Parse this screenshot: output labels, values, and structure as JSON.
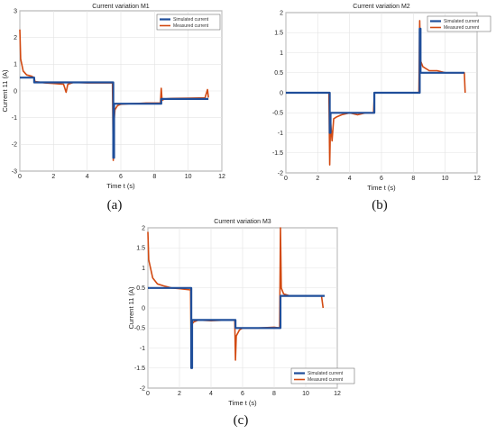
{
  "colors": {
    "simulated": "#1f4e9a",
    "measured": "#d24a12"
  },
  "chart_data": [
    {
      "type": "line",
      "title": "Current variation M1",
      "caption": "(a)",
      "xlabel": "Time t (s)",
      "ylabel": "Current 11 (A)",
      "xlim": [
        0,
        12
      ],
      "ylim": [
        -3,
        3
      ],
      "xticks": [
        0,
        2,
        4,
        6,
        8,
        10,
        12
      ],
      "yticks": [
        -3,
        -2,
        -1,
        0,
        1,
        2,
        3
      ],
      "grid": true,
      "legend": {
        "position": "top-right",
        "entries": [
          "Simulated current",
          "Measured current"
        ]
      },
      "series": [
        {
          "name": "Simulated current",
          "x": [
            0,
            0.85,
            0.85,
            5.55,
            5.55,
            5.6,
            5.6,
            8.4,
            8.4,
            11.2
          ],
          "y": [
            0.5,
            0.5,
            0.32,
            0.32,
            -2.5,
            -2.5,
            -0.48,
            -0.48,
            -0.3,
            -0.3
          ]
        },
        {
          "name": "Measured current",
          "x": [
            0,
            0.05,
            0.2,
            0.4,
            0.7,
            0.85,
            0.9,
            1.5,
            2.0,
            2.6,
            2.75,
            2.85,
            3.2,
            4.0,
            5.0,
            5.5,
            5.55,
            5.6,
            5.65,
            5.8,
            6.0,
            6.5,
            7.0,
            7.5,
            8.0,
            8.35,
            8.4,
            8.45,
            8.6,
            9.0,
            10.0,
            11.0,
            11.15,
            11.2
          ],
          "y": [
            2.3,
            1.2,
            0.75,
            0.6,
            0.55,
            0.5,
            0.35,
            0.3,
            0.28,
            0.25,
            -0.05,
            0.25,
            0.32,
            0.3,
            0.3,
            0.3,
            -2.6,
            -1.1,
            -0.7,
            -0.55,
            -0.5,
            -0.48,
            -0.47,
            -0.45,
            -0.45,
            -0.45,
            0.1,
            -0.35,
            -0.3,
            -0.28,
            -0.27,
            -0.26,
            0.05,
            -0.25
          ]
        }
      ]
    },
    {
      "type": "line",
      "title": "Current variation M2",
      "caption": "(b)",
      "xlabel": "Time t (s)",
      "ylabel": "",
      "xlim": [
        0,
        12
      ],
      "ylim": [
        -2,
        2
      ],
      "xticks": [
        0,
        2,
        4,
        6,
        8,
        10,
        12
      ],
      "yticks": [
        -2,
        -1.5,
        -1,
        -0.5,
        0,
        0.5,
        1,
        1.5,
        2
      ],
      "grid": true,
      "legend": {
        "position": "top-right",
        "entries": [
          "Simulated current",
          "Measured current"
        ]
      },
      "series": [
        {
          "name": "Simulated current",
          "x": [
            0,
            2.75,
            2.75,
            2.8,
            2.8,
            5.55,
            5.55,
            8.4,
            8.4,
            8.45,
            8.45,
            11.2
          ],
          "y": [
            0,
            0,
            -1.0,
            -1.0,
            -0.5,
            -0.5,
            0,
            0,
            1.6,
            1.6,
            0.5,
            0.5
          ]
        },
        {
          "name": "Measured current",
          "x": [
            0,
            2.7,
            2.75,
            2.8,
            2.9,
            3.0,
            3.2,
            3.5,
            4.0,
            4.5,
            5.0,
            5.5,
            5.55,
            6.0,
            7.0,
            8.35,
            8.4,
            8.45,
            8.6,
            9.0,
            9.5,
            10.0,
            10.5,
            11.0,
            11.2,
            11.25
          ],
          "y": [
            0,
            0,
            -1.8,
            -0.7,
            -1.2,
            -0.65,
            -0.6,
            -0.55,
            -0.5,
            -0.55,
            -0.5,
            -0.5,
            0,
            0,
            0,
            0,
            1.8,
            0.8,
            0.65,
            0.55,
            0.55,
            0.5,
            0.5,
            0.5,
            0.5,
            0
          ]
        }
      ]
    },
    {
      "type": "line",
      "title": "Current variation M3",
      "caption": "(c)",
      "xlabel": "Time t (s)",
      "ylabel": "Current 11 (A)",
      "xlim": [
        0,
        12
      ],
      "ylim": [
        -2,
        2
      ],
      "xticks": [
        0,
        2,
        4,
        6,
        8,
        10,
        12
      ],
      "yticks": [
        -2,
        -1.5,
        -1,
        -0.5,
        0,
        0.5,
        1,
        1.5,
        2
      ],
      "grid": true,
      "legend": {
        "position": "bottom-right",
        "entries": [
          "Simulated current",
          "Measured current"
        ]
      },
      "series": [
        {
          "name": "Simulated current",
          "x": [
            0,
            0.4,
            0.4,
            2.75,
            2.75,
            2.8,
            2.8,
            5.55,
            5.55,
            8.4,
            8.4,
            11.2
          ],
          "y": [
            0.5,
            0.5,
            0.5,
            0.5,
            -1.5,
            -1.5,
            -0.3,
            -0.3,
            -0.5,
            -0.5,
            0.3,
            0.3
          ]
        },
        {
          "name": "Measured current",
          "x": [
            0,
            0.05,
            0.3,
            0.6,
            1.0,
            1.5,
            2.0,
            2.7,
            2.75,
            2.8,
            2.9,
            3.2,
            4.0,
            5.0,
            5.5,
            5.55,
            5.6,
            5.8,
            6.0,
            7.0,
            8.0,
            8.35,
            8.4,
            8.45,
            8.6,
            9.0,
            10.0,
            11.0,
            11.1
          ],
          "y": [
            1.9,
            1.2,
            0.75,
            0.6,
            0.55,
            0.5,
            0.48,
            0.45,
            -1.5,
            -0.4,
            -0.35,
            -0.3,
            -0.32,
            -0.3,
            -0.3,
            -1.3,
            -0.7,
            -0.55,
            -0.5,
            -0.5,
            -0.48,
            -0.5,
            2.0,
            0.5,
            0.35,
            0.3,
            0.3,
            0.3,
            0.0
          ]
        }
      ]
    }
  ]
}
